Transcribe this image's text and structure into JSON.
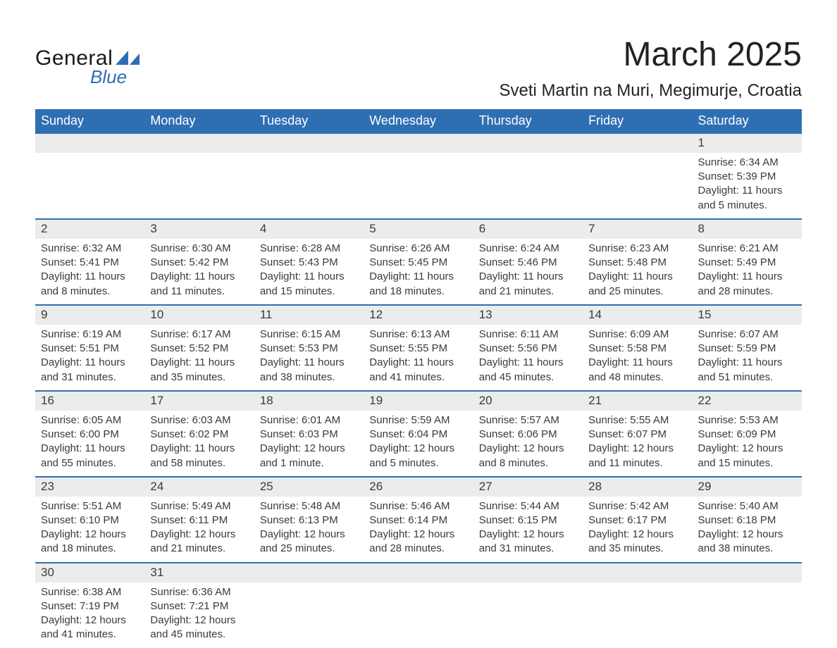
{
  "logo": {
    "general": "General",
    "blue": "Blue"
  },
  "title": "March 2025",
  "location": "Sveti Martin na Muri, Megimurje, Croatia",
  "colors": {
    "header_bg": "#2e6fb3",
    "header_text": "#ffffff",
    "daynum_bg": "#ececec",
    "row_border": "#2e6fb3",
    "text": "#3a3a3a",
    "page_bg": "#ffffff",
    "logo_blue": "#2e6fb3",
    "logo_dark": "#1a1a1a"
  },
  "typography": {
    "title_fontsize": 48,
    "location_fontsize": 24,
    "weekday_fontsize": 18,
    "daynum_fontsize": 17,
    "detail_fontsize": 15,
    "font_family": "Arial"
  },
  "layout": {
    "columns": 7,
    "week_rows": 6,
    "first_day_column_index": 6
  },
  "weekdays": [
    "Sunday",
    "Monday",
    "Tuesday",
    "Wednesday",
    "Thursday",
    "Friday",
    "Saturday"
  ],
  "days": [
    {
      "n": 1,
      "sunrise": "6:34 AM",
      "sunset": "5:39 PM",
      "daylight": "11 hours and 5 minutes."
    },
    {
      "n": 2,
      "sunrise": "6:32 AM",
      "sunset": "5:41 PM",
      "daylight": "11 hours and 8 minutes."
    },
    {
      "n": 3,
      "sunrise": "6:30 AM",
      "sunset": "5:42 PM",
      "daylight": "11 hours and 11 minutes."
    },
    {
      "n": 4,
      "sunrise": "6:28 AM",
      "sunset": "5:43 PM",
      "daylight": "11 hours and 15 minutes."
    },
    {
      "n": 5,
      "sunrise": "6:26 AM",
      "sunset": "5:45 PM",
      "daylight": "11 hours and 18 minutes."
    },
    {
      "n": 6,
      "sunrise": "6:24 AM",
      "sunset": "5:46 PM",
      "daylight": "11 hours and 21 minutes."
    },
    {
      "n": 7,
      "sunrise": "6:23 AM",
      "sunset": "5:48 PM",
      "daylight": "11 hours and 25 minutes."
    },
    {
      "n": 8,
      "sunrise": "6:21 AM",
      "sunset": "5:49 PM",
      "daylight": "11 hours and 28 minutes."
    },
    {
      "n": 9,
      "sunrise": "6:19 AM",
      "sunset": "5:51 PM",
      "daylight": "11 hours and 31 minutes."
    },
    {
      "n": 10,
      "sunrise": "6:17 AM",
      "sunset": "5:52 PM",
      "daylight": "11 hours and 35 minutes."
    },
    {
      "n": 11,
      "sunrise": "6:15 AM",
      "sunset": "5:53 PM",
      "daylight": "11 hours and 38 minutes."
    },
    {
      "n": 12,
      "sunrise": "6:13 AM",
      "sunset": "5:55 PM",
      "daylight": "11 hours and 41 minutes."
    },
    {
      "n": 13,
      "sunrise": "6:11 AM",
      "sunset": "5:56 PM",
      "daylight": "11 hours and 45 minutes."
    },
    {
      "n": 14,
      "sunrise": "6:09 AM",
      "sunset": "5:58 PM",
      "daylight": "11 hours and 48 minutes."
    },
    {
      "n": 15,
      "sunrise": "6:07 AM",
      "sunset": "5:59 PM",
      "daylight": "11 hours and 51 minutes."
    },
    {
      "n": 16,
      "sunrise": "6:05 AM",
      "sunset": "6:00 PM",
      "daylight": "11 hours and 55 minutes."
    },
    {
      "n": 17,
      "sunrise": "6:03 AM",
      "sunset": "6:02 PM",
      "daylight": "11 hours and 58 minutes."
    },
    {
      "n": 18,
      "sunrise": "6:01 AM",
      "sunset": "6:03 PM",
      "daylight": "12 hours and 1 minute."
    },
    {
      "n": 19,
      "sunrise": "5:59 AM",
      "sunset": "6:04 PM",
      "daylight": "12 hours and 5 minutes."
    },
    {
      "n": 20,
      "sunrise": "5:57 AM",
      "sunset": "6:06 PM",
      "daylight": "12 hours and 8 minutes."
    },
    {
      "n": 21,
      "sunrise": "5:55 AM",
      "sunset": "6:07 PM",
      "daylight": "12 hours and 11 minutes."
    },
    {
      "n": 22,
      "sunrise": "5:53 AM",
      "sunset": "6:09 PM",
      "daylight": "12 hours and 15 minutes."
    },
    {
      "n": 23,
      "sunrise": "5:51 AM",
      "sunset": "6:10 PM",
      "daylight": "12 hours and 18 minutes."
    },
    {
      "n": 24,
      "sunrise": "5:49 AM",
      "sunset": "6:11 PM",
      "daylight": "12 hours and 21 minutes."
    },
    {
      "n": 25,
      "sunrise": "5:48 AM",
      "sunset": "6:13 PM",
      "daylight": "12 hours and 25 minutes."
    },
    {
      "n": 26,
      "sunrise": "5:46 AM",
      "sunset": "6:14 PM",
      "daylight": "12 hours and 28 minutes."
    },
    {
      "n": 27,
      "sunrise": "5:44 AM",
      "sunset": "6:15 PM",
      "daylight": "12 hours and 31 minutes."
    },
    {
      "n": 28,
      "sunrise": "5:42 AM",
      "sunset": "6:17 PM",
      "daylight": "12 hours and 35 minutes."
    },
    {
      "n": 29,
      "sunrise": "5:40 AM",
      "sunset": "6:18 PM",
      "daylight": "12 hours and 38 minutes."
    },
    {
      "n": 30,
      "sunrise": "6:38 AM",
      "sunset": "7:19 PM",
      "daylight": "12 hours and 41 minutes."
    },
    {
      "n": 31,
      "sunrise": "6:36 AM",
      "sunset": "7:21 PM",
      "daylight": "12 hours and 45 minutes."
    }
  ],
  "labels": {
    "sunrise": "Sunrise: ",
    "sunset": "Sunset: ",
    "daylight": "Daylight: "
  }
}
